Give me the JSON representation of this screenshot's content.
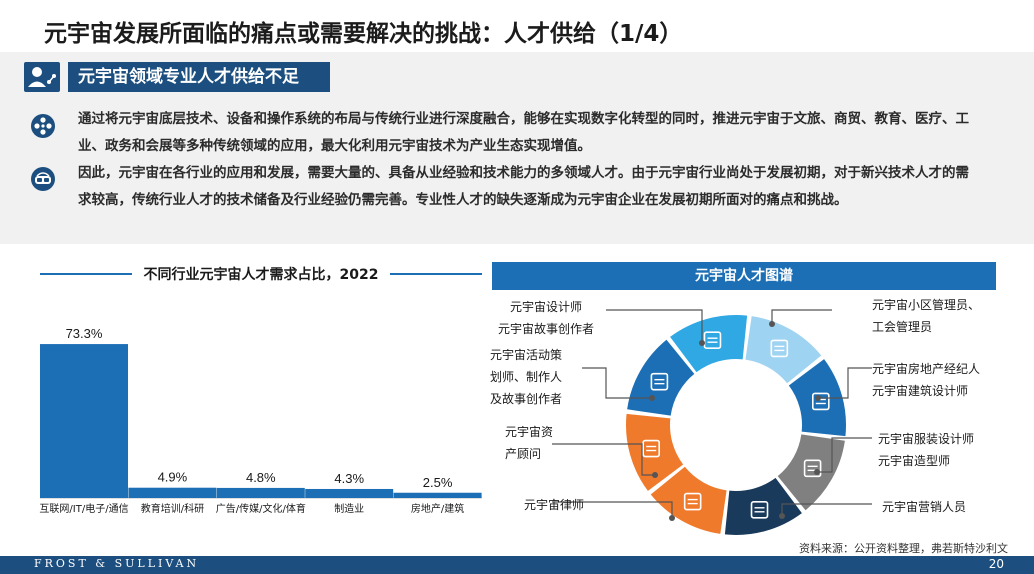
{
  "title": "元宇宙发展所面临的痛点或需要解决的挑战：人才供给（1/4）",
  "section": {
    "icon": "person-network-icon",
    "title": "元宇宙领域专业人才供给不足"
  },
  "paragraphs": [
    {
      "icon": "film-reel-icon",
      "text": "通过将元宇宙底层技术、设备和操作系统的布局与传统行业进行深度融合，能够在实现数字化转型的同时，推进元宇宙于文旅、商贸、教育、医疗、工业、政务和会展等多种传统领域的应用，最大化利用元宇宙技术为产业生态实现增值。"
    },
    {
      "icon": "vr-headset-icon",
      "text": "因此，元宇宙在各行业的应用和发展，需要大量的、具备从业经验和技术能力的多领域人才。由于元宇宙行业尚处于发展初期，对于新兴技术人才的需求较高，传统行业人才的技术储备及行业经验仍需完善。专业性人才的缺失逐渐成为元宇宙企业在发展初期所面对的痛点和挑战。"
    }
  ],
  "chart_title": "不同行业元宇宙人才需求占比，2022",
  "chart_data": {
    "type": "bar",
    "title": "不同行业元宇宙人才需求占比，2022",
    "categories": [
      "互联网/IT/电子/通信",
      "教育培训/科研",
      "广告/传媒/文化/体育",
      "制造业",
      "房地产/建筑"
    ],
    "values": [
      73.3,
      4.9,
      4.8,
      4.3,
      2.5
    ],
    "value_labels": [
      "73.3%",
      "4.9%",
      "4.8%",
      "4.3%",
      "2.5%"
    ],
    "unit": "%",
    "ylim": [
      0,
      80
    ],
    "color": "#1c6fb5",
    "grid": false,
    "legend": "none"
  },
  "talent_map": {
    "title": "元宇宙人才图谱",
    "colors": {
      "dark_navy": "#1a3a5c",
      "blue": "#1c6fb5",
      "light_blue": "#9fd3f2",
      "gray": "#808080",
      "orange": "#f07a2c",
      "sky": "#2fa8e4"
    },
    "roles": [
      {
        "label": "元宇宙设计师\n元宇宙故事创作者",
        "icon": "building-icon"
      },
      {
        "label": "元宇宙小区管理员、\n工会管理员",
        "icon": "globe-network-icon"
      },
      {
        "label": "元宇宙活动策\n划师、制作人\n及故事创作者",
        "icon": "checklist-icon"
      },
      {
        "label": "元宇宙房地产经纪人\n元宇宙建筑设计师",
        "icon": "house-icon"
      },
      {
        "label": "元宇宙资\n产顾问",
        "icon": "money-stack-icon"
      },
      {
        "label": "元宇宙服装设计师\n元宇宙造型师",
        "icon": "clothing-rack-icon"
      },
      {
        "label": "元宇宙律师",
        "icon": "lawyer-icon"
      },
      {
        "label": "元宇宙营销人员",
        "icon": "presenter-icon"
      }
    ]
  },
  "footer": {
    "source": "资料来源：公开资料整理，弗若斯特沙利文",
    "brand": "FROST & SULLIVAN",
    "page": "20"
  }
}
